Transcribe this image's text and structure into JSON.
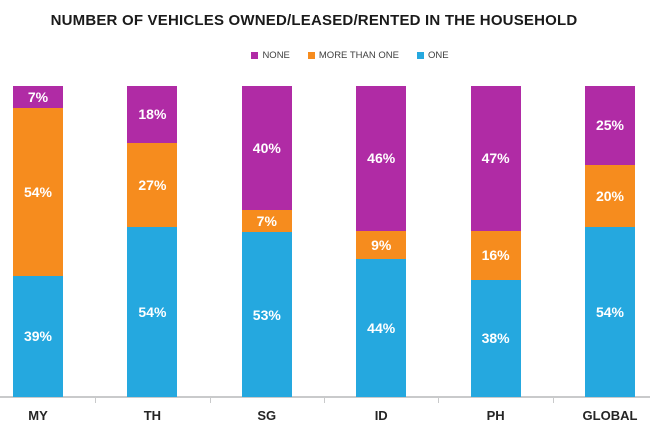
{
  "chart_data": {
    "type": "bar",
    "stacked": true,
    "title": "NUMBER OF VEHICLES OWNED/LEASED/RENTED IN THE HOUSEHOLD",
    "categories": [
      "MY",
      "TH",
      "SG",
      "ID",
      "PH",
      "GLOBAL"
    ],
    "series": [
      {
        "name": "NONE",
        "color": "#b02ba5",
        "values": [
          7,
          18,
          40,
          46,
          47,
          25
        ]
      },
      {
        "name": "MORE THAN ONE",
        "color": "#f68c1e",
        "values": [
          54,
          27,
          7,
          9,
          16,
          20
        ]
      },
      {
        "name": "ONE",
        "color": "#25a8df",
        "values": [
          39,
          54,
          53,
          44,
          38,
          54
        ]
      }
    ],
    "value_suffix": "%",
    "legend_position": "top",
    "legend_order": [
      "NONE",
      "MORE THAN ONE",
      "ONE"
    ],
    "stack_order_top_to_bottom": [
      "NONE",
      "MORE THAN ONE",
      "ONE"
    ],
    "grid": "off",
    "y_axis_visible": false,
    "x_axis_baseline_color": "#c9cacb",
    "value_label_color": "#ffffff",
    "ylim": [
      0,
      100
    ]
  }
}
